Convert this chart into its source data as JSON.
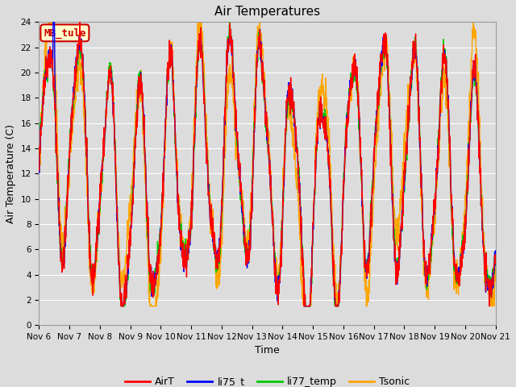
{
  "title": "Air Temperatures",
  "xlabel": "Time",
  "ylabel": "Air Temperature (C)",
  "ylim": [
    0,
    24
  ],
  "xlim": [
    0,
    15
  ],
  "background_color": "#dcdcdc",
  "plot_bg_color": "#dcdcdc",
  "grid_color": "white",
  "annotation_text": "MB_tule",
  "annotation_color": "#cc0000",
  "annotation_bg": "#ffffcc",
  "annotation_border": "#cc0000",
  "x_tick_labels": [
    "Nov 6",
    "Nov 7",
    "Nov 8",
    "Nov 9",
    "Nov 10",
    "Nov 11",
    "Nov 12",
    "Nov 13",
    "Nov 14",
    "Nov 15",
    "Nov 16",
    "Nov 17",
    "Nov 18",
    "Nov 19",
    "Nov 20",
    "Nov 21"
  ],
  "legend_labels": [
    "AirT",
    "li75_t",
    "li77_temp",
    "Tsonic"
  ],
  "legend_colors": [
    "#ff0000",
    "#0000ff",
    "#00cc00",
    "#ffa500"
  ],
  "line_width": 1.0,
  "title_fontsize": 11,
  "label_fontsize": 9,
  "tick_fontsize": 7.5
}
